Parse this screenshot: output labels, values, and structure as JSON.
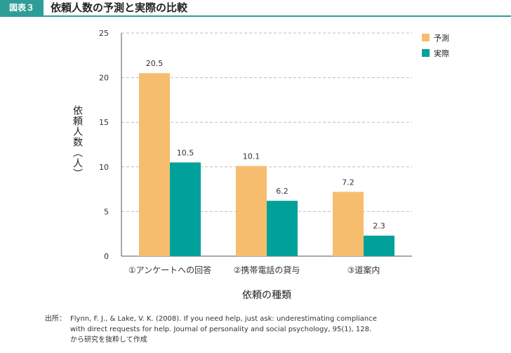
{
  "figure": {
    "badge": "図表３",
    "title": "依頼人数の予測と実際の比較"
  },
  "chart_data": {
    "type": "bar",
    "categories": [
      "①アンケートへの回答",
      "②携帯電話の貸与",
      "③道案内"
    ],
    "series": [
      {
        "name": "予測",
        "values": [
          20.5,
          10.1,
          7.2
        ],
        "color": "#f7bd6e"
      },
      {
        "name": "実際",
        "values": [
          10.5,
          6.2,
          2.3
        ],
        "color": "#00a19a"
      }
    ],
    "xlabel": "依頼の種類",
    "ylabel": "依頼人数（人）",
    "ylim": [
      0,
      25
    ],
    "yticks": [
      0,
      5,
      10,
      15,
      20,
      25
    ],
    "grid": true,
    "legend_position": "top-right",
    "data_labels": true
  },
  "source": {
    "label": "出所：",
    "lines": [
      "Flynn, F. J., & Lake, V. K. (2008). If you need help, just ask: underestimating compliance",
      "with direct requests for help. Journal of personality and social psychology, 95(1), 128.",
      "から研究を抜粋して作成"
    ]
  }
}
